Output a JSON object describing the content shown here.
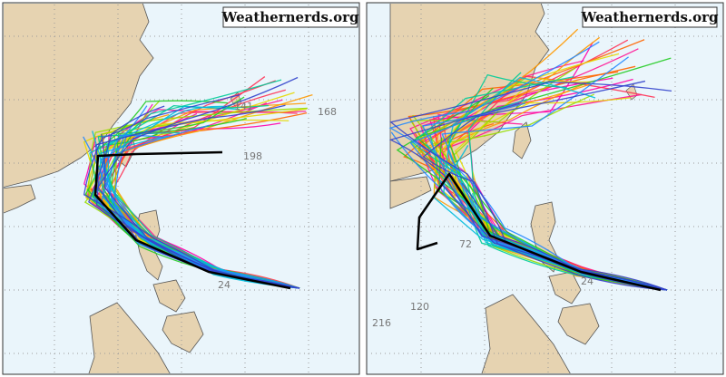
{
  "panels": [
    {
      "watermark": "Weathernerds.org",
      "labels": [
        "141",
        "168",
        "198",
        "24"
      ]
    },
    {
      "watermark": "Weathernerds.org",
      "labels": [
        "72",
        "216",
        "120",
        "24"
      ]
    }
  ]
}
